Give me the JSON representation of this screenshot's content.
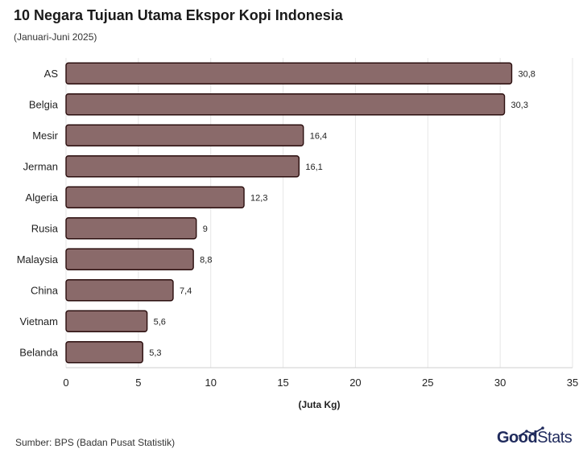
{
  "title": "10 Negara Tujuan Utama Ekspor Kopi Indonesia",
  "subtitle": "(Januari-Juni 2025)",
  "source": "Sumber: BPS (Badan Pusat Statistik)",
  "brand": {
    "part1": "Good",
    "part2": "Stats"
  },
  "colors": {
    "bar_fill": "#8a6a6a",
    "bar_stroke": "#2a0d0d",
    "grid": "#e6e6e6",
    "text": "#222222"
  },
  "chart_data": {
    "type": "bar",
    "orientation": "horizontal",
    "categories": [
      "AS",
      "Belgia",
      "Mesir",
      "Jerman",
      "Algeria",
      "Rusia",
      "Malaysia",
      "China",
      "Vietnam",
      "Belanda"
    ],
    "values": [
      30.8,
      30.3,
      16.4,
      16.1,
      12.3,
      9,
      8.8,
      7.4,
      5.6,
      5.3
    ],
    "value_labels": [
      "30,8",
      "30,3",
      "16,4",
      "16,1",
      "12,3",
      "9",
      "8,8",
      "7,4",
      "5,6",
      "5,3"
    ],
    "xlabel": "(Juta Kg)",
    "xlim": [
      0,
      35
    ],
    "xticks": [
      0,
      5,
      10,
      15,
      20,
      25,
      30,
      35
    ],
    "grid": true
  }
}
